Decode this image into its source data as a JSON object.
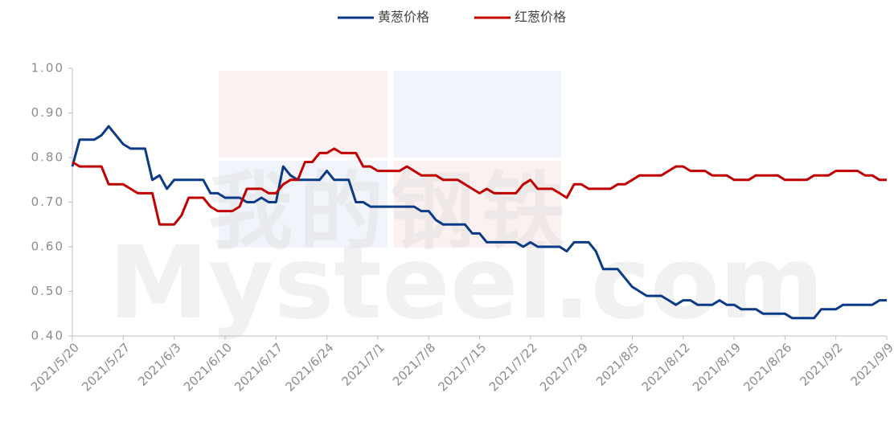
{
  "chart_data": {
    "type": "line",
    "watermark": [
      "我的钢铁",
      "Mysteel.com"
    ],
    "categories": [
      "2021/5/20",
      null,
      null,
      null,
      null,
      null,
      null,
      "2021/5/27",
      null,
      null,
      null,
      null,
      null,
      null,
      "2021/6/3",
      null,
      null,
      null,
      null,
      null,
      null,
      "2021/6/10",
      null,
      null,
      null,
      null,
      null,
      null,
      "2021/6/17",
      null,
      null,
      null,
      null,
      null,
      null,
      "2021/6/24",
      null,
      null,
      null,
      null,
      null,
      null,
      "2021/7/1",
      null,
      null,
      null,
      null,
      null,
      null,
      "2021/7/8",
      null,
      null,
      null,
      null,
      null,
      null,
      "2021/7/15",
      null,
      null,
      null,
      null,
      null,
      null,
      "2021/7/22",
      null,
      null,
      null,
      null,
      null,
      null,
      "2021/7/29",
      null,
      null,
      null,
      null,
      null,
      null,
      "2021/8/5",
      null,
      null,
      null,
      null,
      null,
      null,
      "2021/8/12",
      null,
      null,
      null,
      null,
      null,
      null,
      "2021/8/19",
      null,
      null,
      null,
      null,
      null,
      null,
      "2021/8/26",
      null,
      null,
      null,
      null,
      null,
      null,
      "2021/9/2",
      null,
      null,
      null,
      null,
      null,
      null,
      "2021/9/9"
    ],
    "series": [
      {
        "name": "黄葱价格",
        "color": "#0b3a86",
        "values": [
          0.78,
          0.84,
          0.84,
          0.84,
          0.85,
          0.87,
          0.85,
          0.83,
          0.82,
          0.82,
          0.82,
          0.75,
          0.76,
          0.73,
          0.75,
          0.75,
          0.75,
          0.75,
          0.75,
          0.72,
          0.72,
          0.71,
          0.71,
          0.71,
          0.7,
          0.7,
          0.71,
          0.7,
          0.7,
          0.78,
          0.76,
          0.75,
          0.75,
          0.75,
          0.75,
          0.77,
          0.75,
          0.75,
          0.75,
          0.7,
          0.7,
          0.69,
          0.69,
          0.69,
          0.69,
          0.69,
          0.69,
          0.69,
          0.68,
          0.68,
          0.66,
          0.65,
          0.65,
          0.65,
          0.65,
          0.63,
          0.63,
          0.61,
          0.61,
          0.61,
          0.61,
          0.61,
          0.6,
          0.61,
          0.6,
          0.6,
          0.6,
          0.6,
          0.59,
          0.61,
          0.61,
          0.61,
          0.59,
          0.55,
          0.55,
          0.55,
          0.53,
          0.51,
          0.5,
          0.49,
          0.49,
          0.49,
          0.48,
          0.47,
          0.48,
          0.48,
          0.47,
          0.47,
          0.47,
          0.48,
          0.47,
          0.47,
          0.46,
          0.46,
          0.46,
          0.45,
          0.45,
          0.45,
          0.45,
          0.44,
          0.44,
          0.44,
          0.44,
          0.46,
          0.46,
          0.46,
          0.47,
          0.47,
          0.47,
          0.47,
          0.47,
          0.48,
          0.48
        ]
      },
      {
        "name": "红葱价格",
        "color": "#c00000",
        "values": [
          0.79,
          0.78,
          0.78,
          0.78,
          0.78,
          0.74,
          0.74,
          0.74,
          0.73,
          0.72,
          0.72,
          0.72,
          0.65,
          0.65,
          0.65,
          0.67,
          0.71,
          0.71,
          0.71,
          0.69,
          0.68,
          0.68,
          0.68,
          0.69,
          0.73,
          0.73,
          0.73,
          0.72,
          0.72,
          0.74,
          0.75,
          0.75,
          0.79,
          0.79,
          0.81,
          0.81,
          0.82,
          0.81,
          0.81,
          0.81,
          0.78,
          0.78,
          0.77,
          0.77,
          0.77,
          0.77,
          0.78,
          0.77,
          0.76,
          0.76,
          0.76,
          0.75,
          0.75,
          0.75,
          0.74,
          0.73,
          0.72,
          0.73,
          0.72,
          0.72,
          0.72,
          0.72,
          0.74,
          0.75,
          0.73,
          0.73,
          0.73,
          0.72,
          0.71,
          0.74,
          0.74,
          0.73,
          0.73,
          0.73,
          0.73,
          0.74,
          0.74,
          0.75,
          0.76,
          0.76,
          0.76,
          0.76,
          0.77,
          0.78,
          0.78,
          0.77,
          0.77,
          0.77,
          0.76,
          0.76,
          0.76,
          0.75,
          0.75,
          0.75,
          0.76,
          0.76,
          0.76,
          0.76,
          0.75,
          0.75,
          0.75,
          0.75,
          0.76,
          0.76,
          0.76,
          0.77,
          0.77,
          0.77,
          0.77,
          0.76,
          0.76,
          0.75,
          0.75
        ]
      }
    ],
    "ylim": [
      0.4,
      1.0
    ],
    "yticks": [
      {
        "value": 0.4,
        "label": "0.40"
      },
      {
        "value": 0.5,
        "label": "0.50"
      },
      {
        "value": 0.6,
        "label": "0.60"
      },
      {
        "value": 0.7,
        "label": "0.70"
      },
      {
        "value": 0.8,
        "label": "0.80"
      },
      {
        "value": 0.9,
        "label": "0.90"
      },
      {
        "value": 1.0,
        "label": "1.00"
      }
    ],
    "grid": false,
    "legend": "top"
  }
}
